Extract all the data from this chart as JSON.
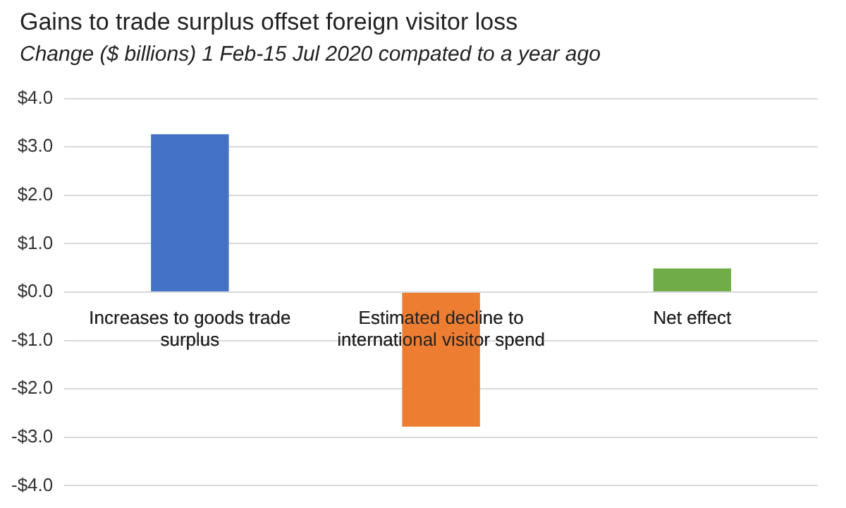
{
  "chart_data": {
    "type": "bar",
    "title": "Gains to trade surplus offset foreign visitor loss",
    "subtitle": "Change ($ billions) 1 Feb-15 Jul 2020 compated to a year ago",
    "categories": [
      "Increases to goods trade surplus",
      "Estimated decline to international visitor spend",
      "Net effect"
    ],
    "values": [
      3.26,
      -2.78,
      0.49
    ],
    "colors": [
      "#4472c4",
      "#ed7d31",
      "#70ad47"
    ],
    "ylim": [
      -4,
      4
    ],
    "yticks": [
      {
        "value": -4,
        "label": "-$4.0"
      },
      {
        "value": -3,
        "label": "-$3.0"
      },
      {
        "value": -2,
        "label": "-$2.0"
      },
      {
        "value": -1,
        "label": "-$1.0"
      },
      {
        "value": 0,
        "label": "$0.0"
      },
      {
        "value": 1,
        "label": "$1.0"
      },
      {
        "value": 2,
        "label": "$2.0"
      },
      {
        "value": 3,
        "label": "$3.0"
      },
      {
        "value": 4,
        "label": "$4.0"
      }
    ],
    "grid": "y",
    "legend": false
  }
}
